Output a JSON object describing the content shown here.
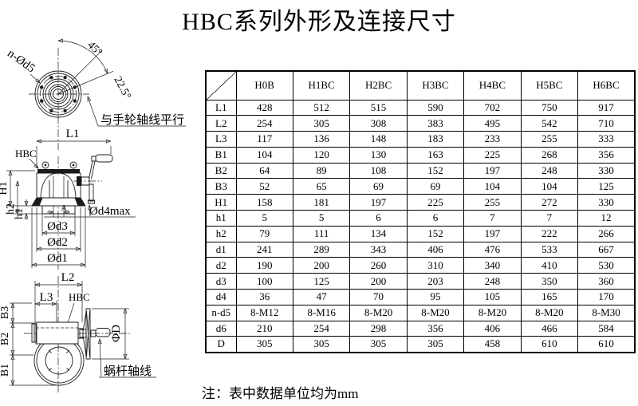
{
  "page": {
    "title": "HBC系列外形及连接尺寸",
    "note": "注：表中数据单位均为mm"
  },
  "drawings": {
    "flange_view": {
      "bolt_label": "n-Ød5",
      "angle_45": "45°",
      "angle_22_5": "22.5°",
      "leader_note": "与手轮轴线平行"
    },
    "side_view": {
      "dim_L1": "L1",
      "model_label": "HBC",
      "dim_H1": "H1",
      "dim_h2": "h2",
      "dim_h1": "h1",
      "dim_A": "A",
      "dim_d4": "Ød4max",
      "dim_d3": "Ød3",
      "dim_d2": "Ød2",
      "dim_d1": "Ød1"
    },
    "front_view": {
      "dim_L2": "L2",
      "dim_L3": "L3",
      "model_label": "HBC",
      "dim_B3": "B3",
      "dim_B2": "B2",
      "dim_B1": "B1",
      "dim_D": "ΦD",
      "axis_note": "蜗杆轴线"
    }
  },
  "table": {
    "columns": [
      "H0B",
      "H1BC",
      "H2BC",
      "H3BC",
      "H4BC",
      "H5BC",
      "H6BC"
    ],
    "rows": [
      {
        "label": "L1",
        "values": [
          "428",
          "512",
          "515",
          "590",
          "702",
          "750",
          "917"
        ]
      },
      {
        "label": "L2",
        "values": [
          "254",
          "305",
          "308",
          "383",
          "495",
          "542",
          "710"
        ]
      },
      {
        "label": "L3",
        "values": [
          "117",
          "136",
          "148",
          "183",
          "233",
          "255",
          "333"
        ]
      },
      {
        "label": "B1",
        "values": [
          "104",
          "120",
          "130",
          "163",
          "225",
          "268",
          "356"
        ]
      },
      {
        "label": "B2",
        "values": [
          "64",
          "89",
          "108",
          "152",
          "197",
          "248",
          "330"
        ]
      },
      {
        "label": "B3",
        "values": [
          "52",
          "65",
          "69",
          "69",
          "104",
          "104",
          "125"
        ]
      },
      {
        "label": "H1",
        "values": [
          "158",
          "181",
          "197",
          "225",
          "255",
          "272",
          "330"
        ]
      },
      {
        "label": "h1",
        "values": [
          "5",
          "5",
          "6",
          "6",
          "7",
          "7",
          "12"
        ]
      },
      {
        "label": "h2",
        "values": [
          "79",
          "111",
          "134",
          "152",
          "197",
          "222",
          "266"
        ]
      },
      {
        "label": "d1",
        "values": [
          "241",
          "289",
          "343",
          "406",
          "476",
          "533",
          "667"
        ]
      },
      {
        "label": "d2",
        "values": [
          "190",
          "200",
          "260",
          "310",
          "340",
          "410",
          "530"
        ]
      },
      {
        "label": "d3",
        "values": [
          "100",
          "125",
          "200",
          "203",
          "248",
          "350",
          "360"
        ]
      },
      {
        "label": "d4",
        "values": [
          "36",
          "47",
          "70",
          "95",
          "105",
          "165",
          "170"
        ]
      },
      {
        "label": "n-d5",
        "values": [
          "8-M12",
          "8-M16",
          "8-M20",
          "8-M20",
          "8-M20",
          "8-M20",
          "8-M30"
        ]
      },
      {
        "label": "d6",
        "values": [
          "210",
          "254",
          "298",
          "356",
          "406",
          "466",
          "584"
        ]
      },
      {
        "label": "D",
        "values": [
          "305",
          "305",
          "305",
          "305",
          "458",
          "610",
          "610"
        ]
      }
    ]
  }
}
